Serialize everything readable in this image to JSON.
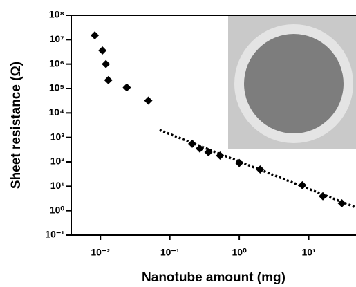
{
  "chart_data": {
    "type": "scatter",
    "x_label": "Nanotube amount (mg)",
    "y_label": "Sheet resistance (Ω)",
    "log_x": true,
    "log_y": true,
    "xlim": [
      0.0038,
      48
    ],
    "ylim": [
      0.1,
      100000000
    ],
    "xticks": [
      {
        "value": 0.01,
        "label": "10⁻²"
      },
      {
        "value": 0.1,
        "label": "10⁻¹"
      },
      {
        "value": 1,
        "label": "10⁰"
      },
      {
        "value": 10,
        "label": "10¹"
      }
    ],
    "yticks": [
      {
        "value": 0.1,
        "label": "10⁻¹"
      },
      {
        "value": 1,
        "label": "10⁰"
      },
      {
        "value": 10,
        "label": "10¹"
      },
      {
        "value": 100,
        "label": "10²"
      },
      {
        "value": 1000,
        "label": "10³"
      },
      {
        "value": 10000,
        "label": "10⁴"
      },
      {
        "value": 100000,
        "label": "10⁵"
      },
      {
        "value": 1000000,
        "label": "10⁶"
      },
      {
        "value": 10000000,
        "label": "10⁷"
      },
      {
        "value": 100000000,
        "label": "10⁸"
      }
    ],
    "series": [
      {
        "color": "#000000",
        "x": [
          0.0083,
          0.0107,
          0.012,
          0.013,
          0.024,
          0.049,
          0.21,
          0.27,
          0.36,
          0.53,
          1.0,
          2.0,
          8.1,
          16,
          30
        ],
        "values": [
          15000000,
          3600000,
          1000000,
          220000,
          110000,
          32000,
          550,
          350,
          250,
          180,
          90,
          49,
          11,
          3.9,
          2.0
        ]
      }
    ],
    "fit": {
      "color": "#000000",
      "x": [
        0.071,
        48
      ],
      "values": [
        2000,
        1.35
      ]
    }
  }
}
